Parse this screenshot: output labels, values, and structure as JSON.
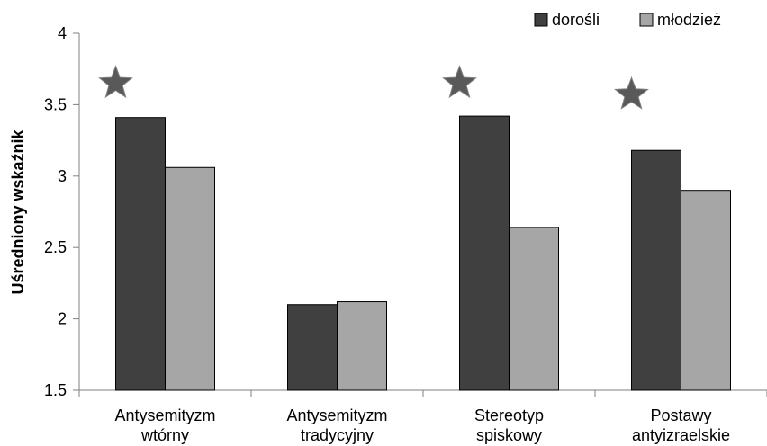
{
  "chart_data": {
    "type": "bar",
    "title": "",
    "xlabel": "",
    "ylabel": "Uśredniony wskaźnik",
    "ylim": [
      1.5,
      4
    ],
    "yticks": [
      "1.5",
      "2",
      "2.5",
      "3",
      "3.5",
      "4"
    ],
    "grid": false,
    "legend_position": "top-right",
    "categories": [
      [
        "Antysemityzm",
        "wtórny"
      ],
      [
        "Antysemityzm",
        "tradycyjny"
      ],
      [
        "Stereotyp",
        "spiskowy"
      ],
      [
        "Postawy",
        "antyizraelskie"
      ]
    ],
    "series": [
      {
        "name": "dorośli",
        "color": "#404040",
        "values": [
          3.41,
          2.1,
          3.42,
          3.18
        ]
      },
      {
        "name": "młodzież",
        "color": "#a6a6a6",
        "values": [
          3.06,
          2.12,
          2.64,
          2.9
        ]
      }
    ],
    "star_marked": [
      true,
      false,
      true,
      true
    ],
    "star_values": [
      3.65,
      null,
      3.65,
      3.57
    ],
    "star_color": "#595959"
  }
}
